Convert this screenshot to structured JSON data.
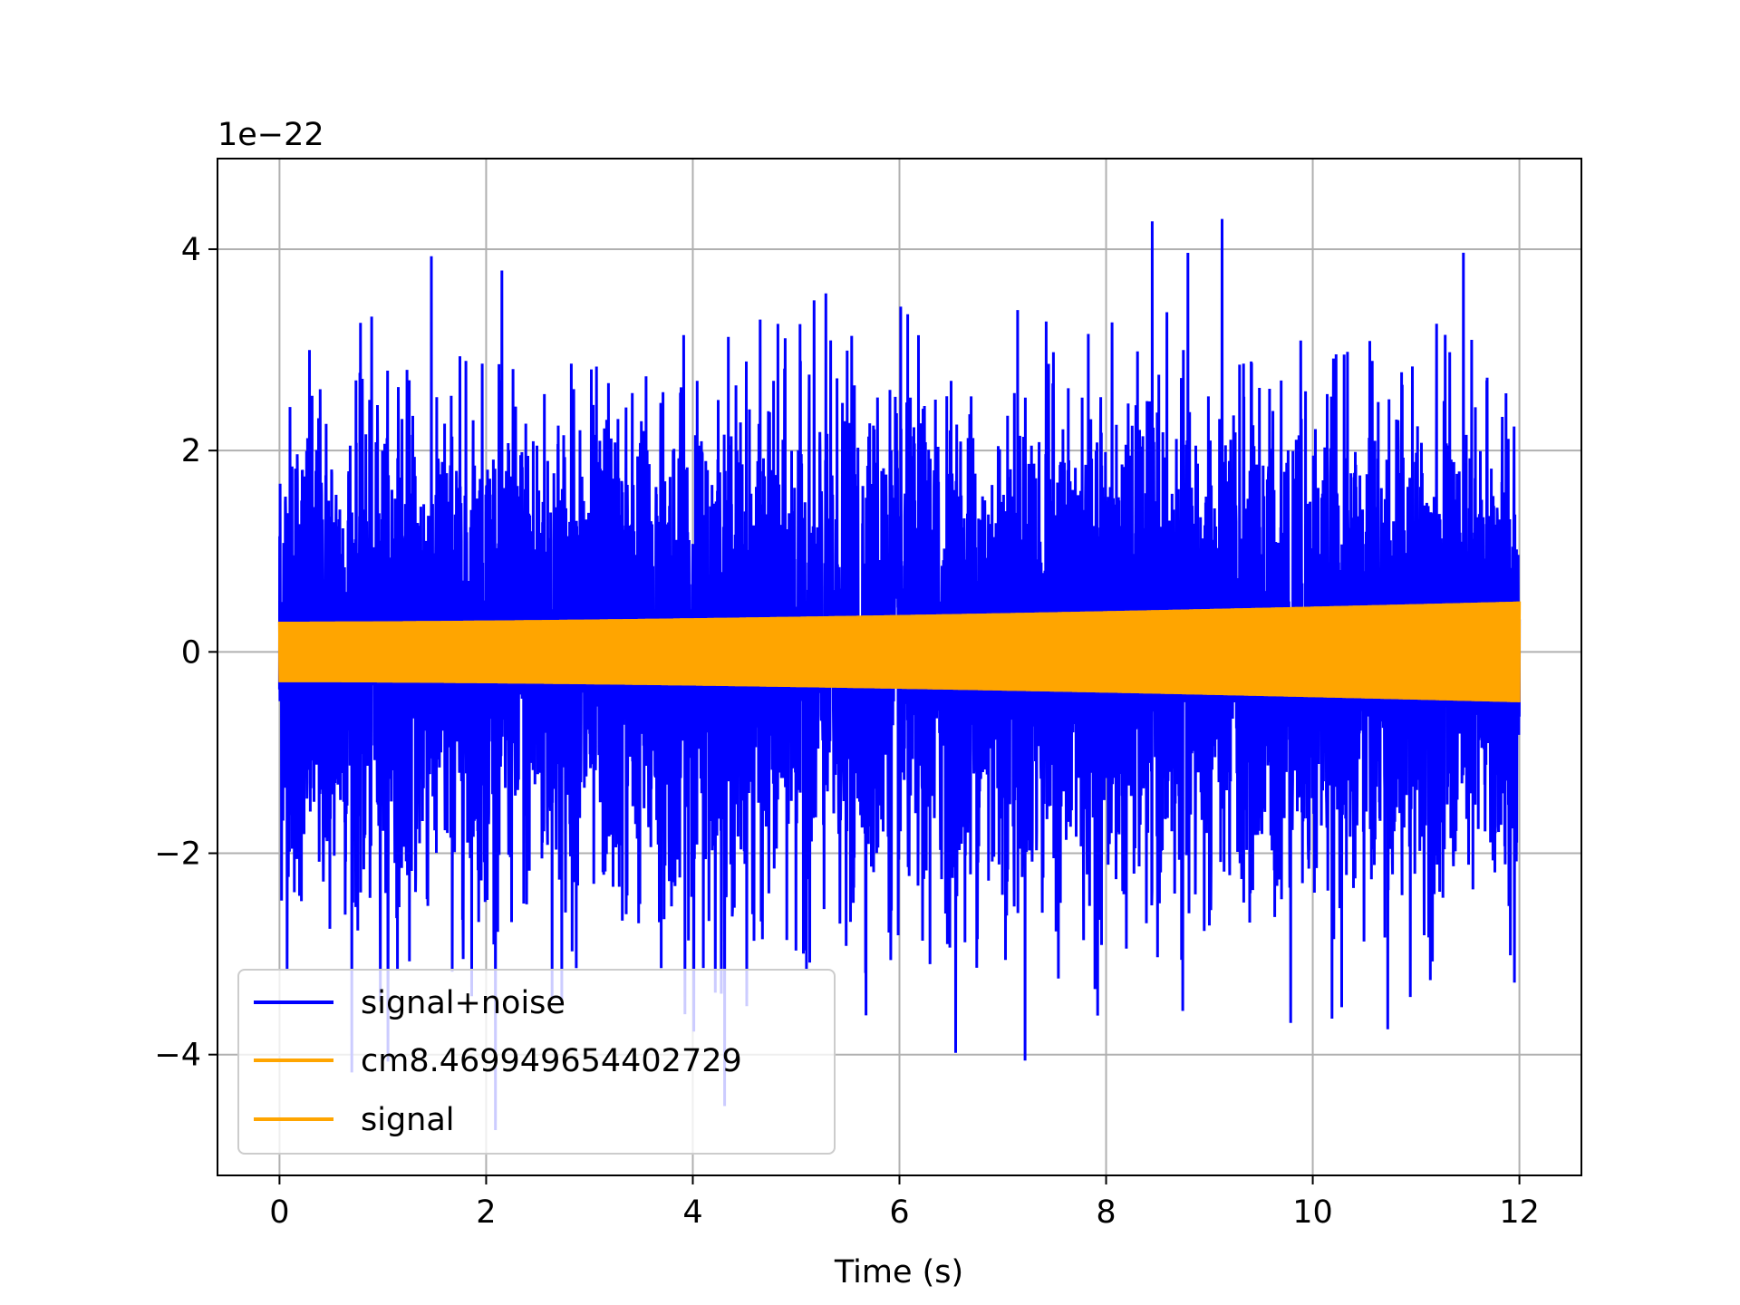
{
  "chart_data": {
    "type": "line",
    "title": "",
    "xlabel": "Time (s)",
    "ylabel": "",
    "y_offset_label": "1e−22",
    "y_scale_factor": 1e-22,
    "xlim": [
      -0.6,
      12.6
    ],
    "ylim": [
      -5.2,
      4.9
    ],
    "x_ticks": [
      0,
      2,
      4,
      6,
      8,
      10,
      12
    ],
    "x_tick_labels": [
      "0",
      "2",
      "4",
      "6",
      "8",
      "10",
      "12"
    ],
    "y_ticks": [
      -4,
      -2,
      0,
      2,
      4
    ],
    "y_tick_labels": [
      "−4",
      "−2",
      "0",
      "2",
      "4"
    ],
    "grid": true,
    "legend_position": "lower-left",
    "series": [
      {
        "name": "signal+noise",
        "color": "#0000ff",
        "x_range": [
          0,
          12
        ],
        "typical_amplitude": 1.2,
        "max": 4.5,
        "min": -4.75
      },
      {
        "name": "cm8.469949654402729",
        "color": "#ffa500",
        "x_range": [
          0,
          12
        ],
        "envelope_start": 0.3,
        "envelope_end": 0.5
      },
      {
        "name": "signal",
        "color": "#ffa500",
        "x_range": [
          0,
          12
        ],
        "envelope_start": 0.3,
        "envelope_end": 0.5
      }
    ]
  }
}
